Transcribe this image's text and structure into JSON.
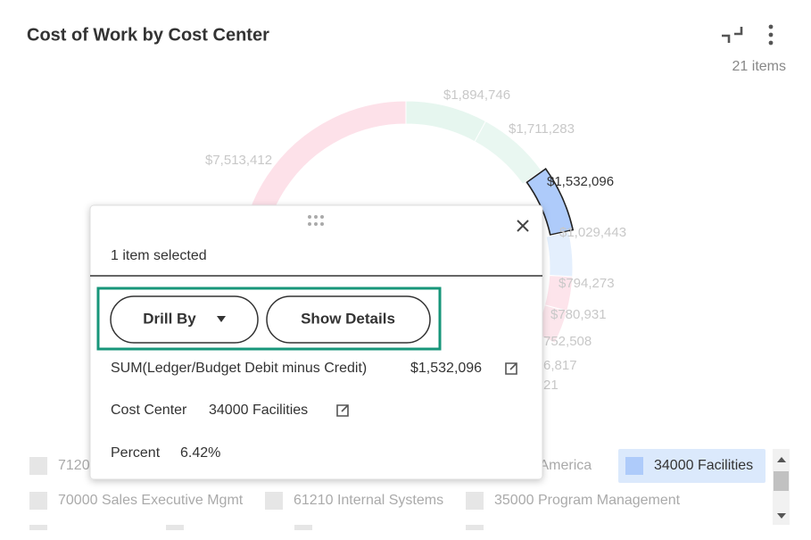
{
  "header": {
    "title": "Cost of Work by Cost Center",
    "item_count": "21 items"
  },
  "donut": {
    "segments": [
      {
        "label": "$1,894,746",
        "value": 1894746,
        "color": "#e6f6ef"
      },
      {
        "label": "$1,711,283",
        "value": 1711283,
        "color": "#e9f7f1"
      },
      {
        "label": "$1,532,096",
        "value": 1532096,
        "color": "#aecbfa",
        "selected": true
      },
      {
        "label": "$1,029,443",
        "value": 1029443,
        "color": "#e4effd"
      },
      {
        "label": "$794,273",
        "value": 794273,
        "color": "#fde4eb"
      },
      {
        "label": "$780,931",
        "value": 780931,
        "color": "#fce6ec"
      }
    ],
    "partial_labels": [
      "752,508",
      "6,817",
      "21"
    ],
    "last_segment": {
      "label": "$7,513,412",
      "value": 7513412,
      "color": "#fde1e9"
    }
  },
  "popup": {
    "selection": "1 item selected",
    "buttons": [
      "Drill By",
      "Show Details"
    ],
    "rows": [
      {
        "label": "SUM(Ledger/Budget Debit minus Credit)",
        "value": "$1,532,096"
      },
      {
        "label": "Cost Center",
        "value": "34000 Facilities"
      },
      {
        "label": "Percent",
        "value": "6.42%"
      }
    ]
  },
  "legend": {
    "items": [
      {
        "label": "7120"
      },
      {
        "label": "h America"
      },
      {
        "label": "34000 Facilities",
        "selected": true
      },
      {
        "label": "70000 Sales Executive Mgmt"
      },
      {
        "label": "61210 Internal Systems"
      },
      {
        "label": "35000 Program Management"
      }
    ]
  }
}
